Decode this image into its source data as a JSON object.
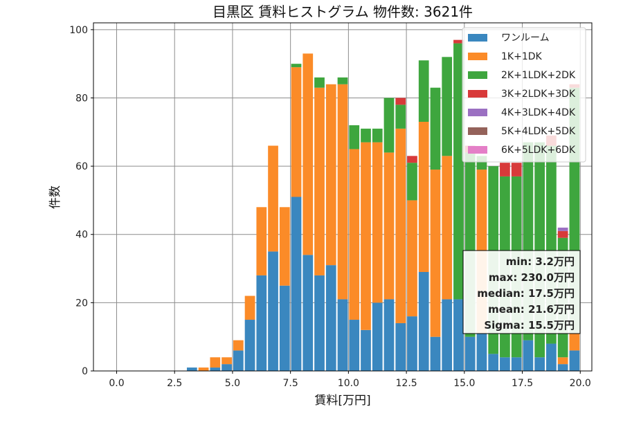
{
  "chart_data": {
    "type": "bar",
    "stacked": true,
    "title": "目黒区 賃料ヒストグラム 物件数: 3621件",
    "xlabel": "賃料[万円]",
    "ylabel": "件数",
    "xlim": [
      -1.0,
      20.5
    ],
    "ylim": [
      0,
      102
    ],
    "xticks": [
      0.0,
      2.5,
      5.0,
      7.5,
      10.0,
      12.5,
      15.0,
      17.5,
      20.0
    ],
    "xtick_labels": [
      "0.0",
      "2.5",
      "5.0",
      "7.5",
      "10.0",
      "12.5",
      "15.0",
      "17.5",
      "20.0"
    ],
    "yticks": [
      0,
      20,
      40,
      60,
      80,
      100
    ],
    "ytick_labels": [
      "0",
      "20",
      "40",
      "60",
      "80",
      "100"
    ],
    "grid": true,
    "legend_position": "top-right",
    "bin_width": 0.5,
    "x": [
      3.0,
      3.5,
      4.0,
      4.5,
      5.0,
      5.5,
      6.0,
      6.5,
      7.0,
      7.5,
      8.0,
      8.5,
      9.0,
      9.5,
      10.0,
      10.5,
      11.0,
      11.5,
      12.0,
      12.5,
      13.0,
      13.5,
      14.0,
      14.5,
      15.0,
      15.5,
      16.0,
      16.5,
      17.0,
      17.5,
      18.0,
      18.5,
      19.0,
      19.5
    ],
    "series": [
      {
        "name": "ワンルーム",
        "color": "#3a87bf",
        "values": [
          1,
          0,
          1,
          2,
          6,
          15,
          28,
          35,
          25,
          51,
          34,
          28,
          31,
          21,
          15,
          12,
          20,
          21,
          14,
          16,
          29,
          10,
          21,
          21,
          10,
          11,
          5,
          4,
          4,
          9,
          4,
          8,
          2,
          6
        ]
      },
      {
        "name": "1K+1DK",
        "color": "#fb8b28",
        "values": [
          0,
          1,
          3,
          2,
          3,
          7,
          20,
          31,
          23,
          38,
          59,
          55,
          53,
          63,
          50,
          55,
          47,
          43,
          57,
          34,
          44,
          49,
          42,
          0,
          0,
          48,
          0,
          0,
          0,
          0,
          0,
          0,
          2,
          5
        ]
      },
      {
        "name": "2K+1LDK+2DK",
        "color": "#3ea63e",
        "values": [
          0,
          0,
          0,
          0,
          0,
          0,
          0,
          0,
          0,
          1,
          0,
          3,
          0,
          2,
          7,
          4,
          4,
          16,
          7,
          11,
          18,
          24,
          29,
          75,
          54,
          4,
          55,
          53,
          53,
          58,
          63,
          58,
          35,
          72
        ]
      },
      {
        "name": "3K+2LDK+3DK",
        "color": "#d83a3a",
        "values": [
          0,
          0,
          0,
          0,
          0,
          0,
          0,
          0,
          0,
          0,
          0,
          0,
          0,
          0,
          0,
          0,
          0,
          0,
          2,
          2,
          0,
          0,
          0,
          1,
          2,
          0,
          0,
          4,
          4,
          0,
          0,
          3,
          2,
          1
        ]
      },
      {
        "name": "4K+3LDK+4DK",
        "color": "#9b70c2",
        "values": [
          0,
          0,
          0,
          0,
          0,
          0,
          0,
          0,
          0,
          0,
          0,
          0,
          0,
          0,
          0,
          0,
          0,
          0,
          0,
          0,
          0,
          0,
          0,
          0,
          0,
          0,
          0,
          0,
          0,
          0,
          0,
          0,
          1,
          0
        ]
      },
      {
        "name": "5K+4LDK+5DK",
        "color": "#94625a",
        "values": [
          0,
          0,
          0,
          0,
          0,
          0,
          0,
          0,
          0,
          0,
          0,
          0,
          0,
          0,
          0,
          0,
          0,
          0,
          0,
          0,
          0,
          0,
          0,
          0,
          0,
          0,
          0,
          0,
          0,
          0,
          0,
          0,
          0,
          0
        ]
      },
      {
        "name": "6K+5LDK+6DK",
        "color": "#e47fc7",
        "values": [
          0,
          0,
          0,
          0,
          0,
          0,
          0,
          0,
          0,
          0,
          0,
          0,
          0,
          0,
          0,
          0,
          0,
          0,
          0,
          0,
          0,
          0,
          0,
          0,
          0,
          0,
          0,
          0,
          0,
          0,
          0,
          0,
          0,
          0
        ]
      }
    ],
    "stats_box": [
      "min: 3.2万円",
      "max: 230.0万円",
      "median: 17.5万円",
      "mean: 21.6万円",
      "Sigma: 15.5万円"
    ]
  }
}
